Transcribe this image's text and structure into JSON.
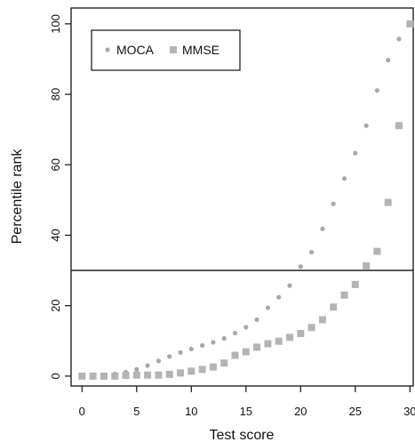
{
  "chart_data": {
    "type": "scatter",
    "xlabel": "Test score",
    "ylabel": "Percentile rank",
    "xlim": [
      -1,
      30.3
    ],
    "ylim": [
      -2.8,
      104.5
    ],
    "xticks": [
      0,
      5,
      10,
      15,
      20,
      25,
      30
    ],
    "yticks": [
      0,
      20,
      40,
      60,
      80,
      100
    ],
    "legend_position": "top-left",
    "grid": false,
    "reference_line": {
      "orientation": "horizontal",
      "y": 30
    },
    "series": [
      {
        "name": "MOCA",
        "marker": "circle",
        "color": "#a8a8a8",
        "x": [
          0,
          1,
          2,
          3,
          4,
          5,
          6,
          7,
          8,
          9,
          10,
          11,
          12,
          13,
          14,
          15,
          16,
          17,
          18,
          19,
          20,
          21,
          22,
          23,
          24,
          25,
          26,
          27,
          28,
          29,
          30
        ],
        "y": [
          0,
          0.1,
          0.3,
          0.6,
          1.1,
          1.9,
          3.0,
          4.3,
          5.6,
          6.7,
          7.7,
          8.7,
          9.6,
          10.7,
          12.2,
          13.9,
          16.0,
          19.4,
          22.4,
          25.7,
          31.1,
          35.2,
          41.8,
          48.9,
          56.1,
          63.3,
          71.1,
          81.1,
          89.7,
          95.7,
          100.2
        ]
      },
      {
        "name": "MMSE",
        "marker": "square",
        "color": "#b4b4b4",
        "x": [
          0,
          1,
          2,
          3,
          4,
          5,
          6,
          7,
          8,
          9,
          10,
          11,
          12,
          13,
          14,
          15,
          16,
          17,
          18,
          19,
          20,
          21,
          22,
          23,
          24,
          25,
          26,
          27,
          28,
          29,
          30
        ],
        "y": [
          0,
          0,
          0,
          0,
          0.2,
          0.3,
          0.3,
          0.3,
          0.5,
          0.9,
          1.4,
          1.9,
          2.6,
          3.7,
          5.9,
          6.9,
          8.2,
          9.2,
          9.9,
          11.0,
          12.1,
          13.8,
          16.0,
          19.6,
          23.0,
          26.0,
          31.3,
          35.4,
          49.3,
          71.1,
          100.0
        ]
      }
    ]
  }
}
